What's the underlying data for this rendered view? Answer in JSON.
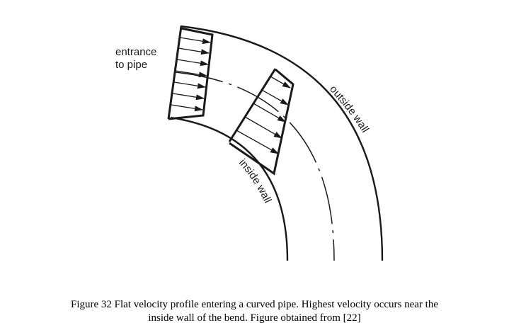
{
  "figure": {
    "labels": {
      "entrance_line1": "entrance",
      "entrance_line2": "to pipe",
      "outside_wall": "outside wall",
      "inside_wall": "inside wall"
    },
    "line_color": "#1a1a1a"
  },
  "caption": {
    "line1": "Figure 32 Flat velocity profile entering a curved pipe. Highest velocity occurs near the",
    "line2": "inside wall of the bend. Figure obtained from [22]"
  }
}
